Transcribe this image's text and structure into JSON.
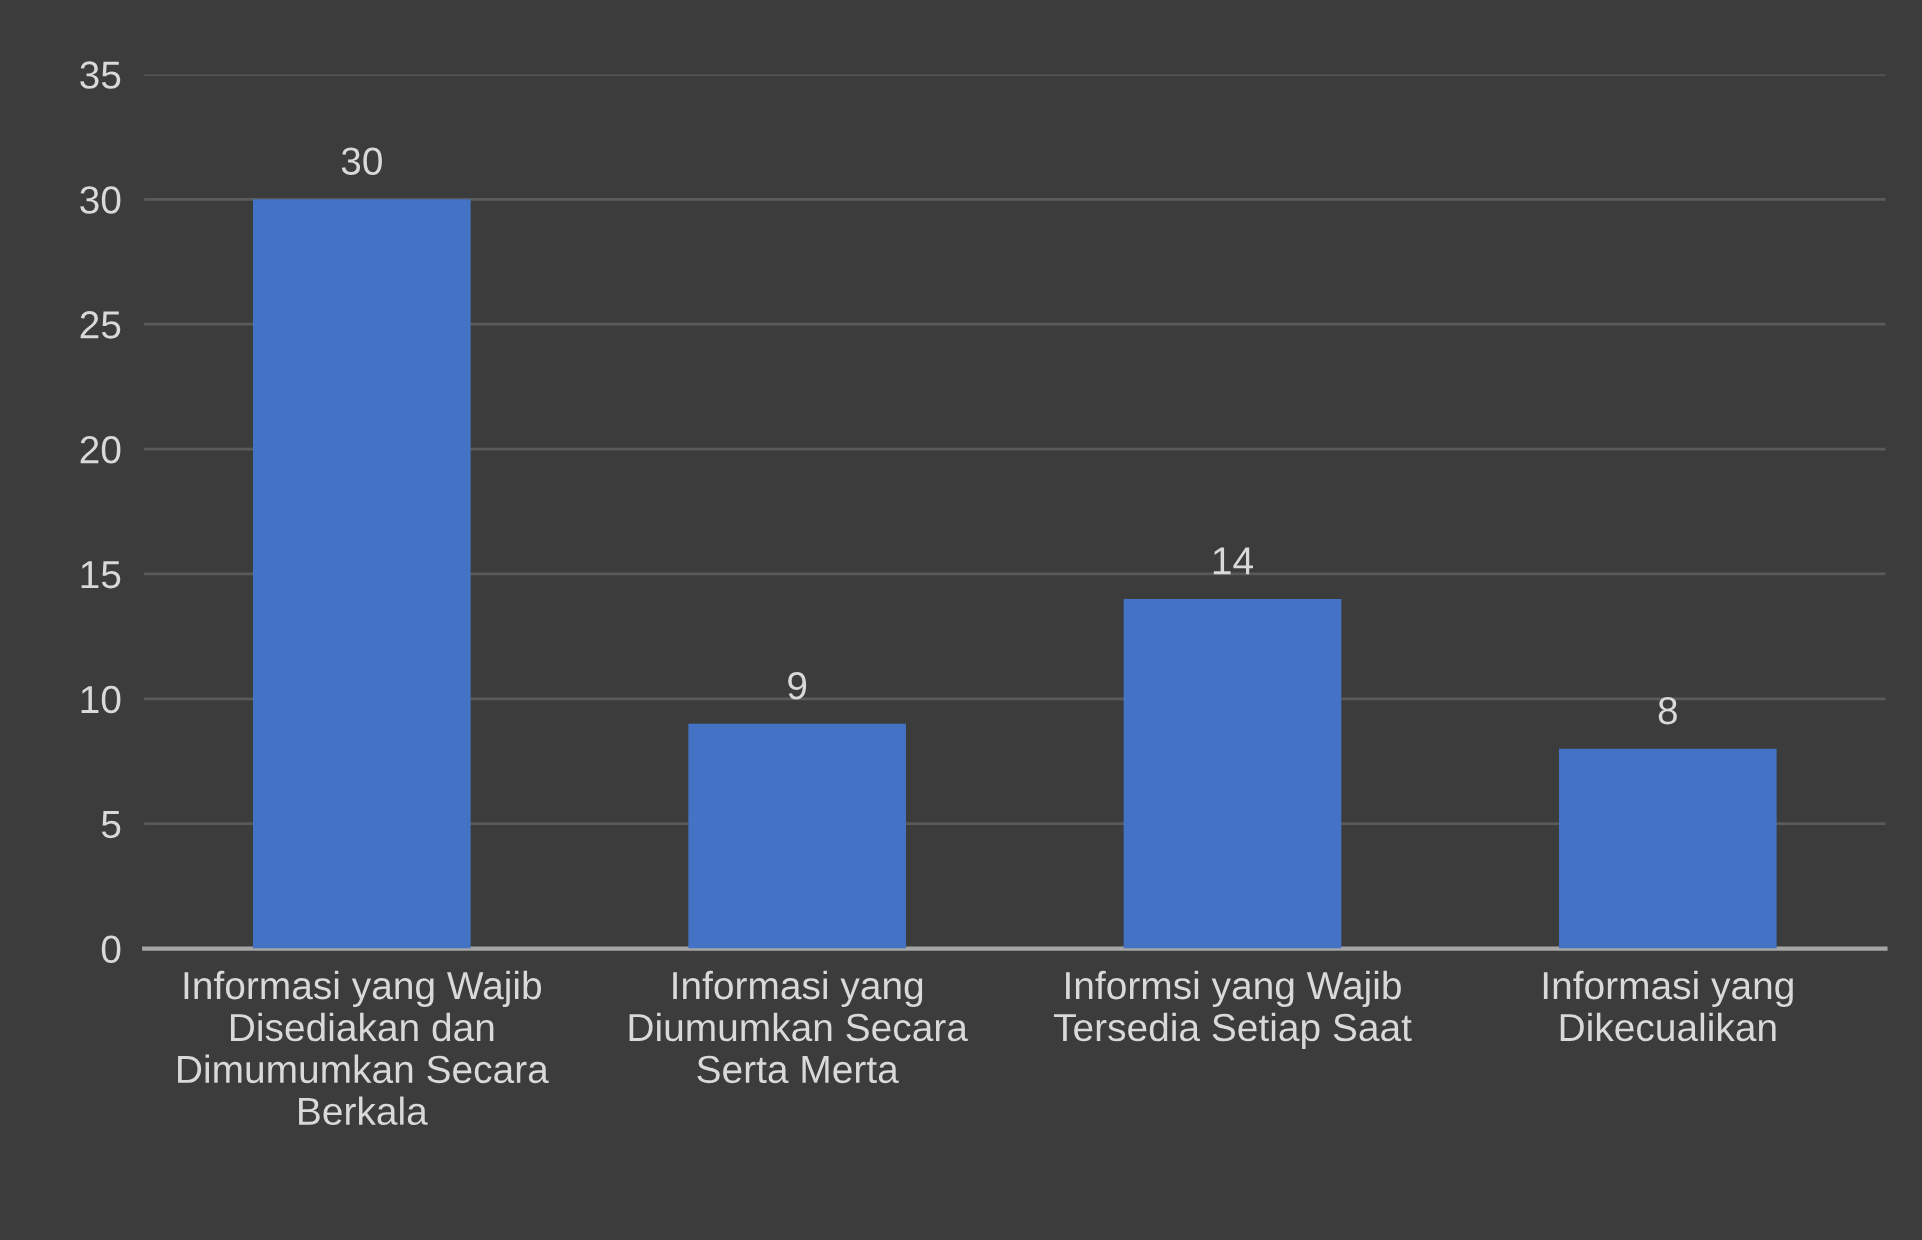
{
  "chart_data": {
    "type": "bar",
    "categories": [
      "Informasi yang Wajib\nDisediakan dan\nDimumumkan Secara\nBerkala",
      "Informasi yang\nDiumumkan Secara\nSerta Merta",
      "Informsi yang Wajib\nTersedia Setiap Saat",
      "Informasi yang\nDikecualikan"
    ],
    "values": [
      30,
      9,
      14,
      8
    ],
    "color": "#4472c4",
    "ylim": [
      0,
      35
    ],
    "yticks": [
      0,
      5,
      10,
      15,
      20,
      25,
      30,
      35
    ],
    "grid": "y",
    "data_labels": true,
    "legend": false
  }
}
